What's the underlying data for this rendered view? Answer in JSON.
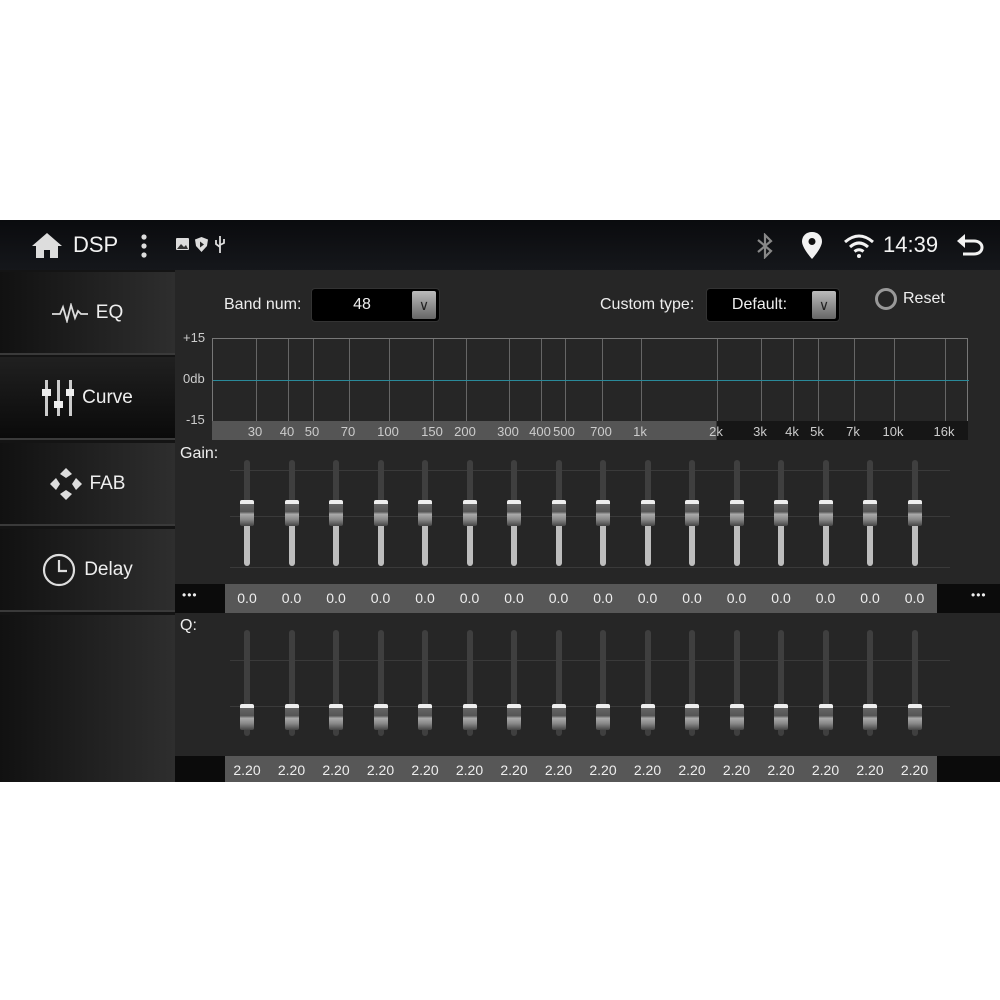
{
  "topbar": {
    "title": "DSP",
    "time": "14:39",
    "icons": [
      "home-icon",
      "more-vert-icon",
      "image-icon",
      "shield-play-icon",
      "usb-icon",
      "bluetooth-icon",
      "location-icon",
      "wifi-icon",
      "back-icon"
    ]
  },
  "sidebar": {
    "items": [
      {
        "label": "EQ",
        "icon": "waveform-icon",
        "active": false
      },
      {
        "label": "Curve",
        "icon": "sliders-icon",
        "active": true
      },
      {
        "label": "FAB",
        "icon": "fader-balance-icon",
        "active": false
      },
      {
        "label": "Delay",
        "icon": "clock-icon",
        "active": false
      }
    ]
  },
  "controls": {
    "band_label": "Band num:",
    "band_value": "48",
    "custom_label": "Custom type:",
    "custom_value": "Default:",
    "reset_label": "Reset"
  },
  "chart_data": {
    "type": "line",
    "y_ticks": [
      "+15",
      "0db",
      "-15"
    ],
    "ylim": [
      -15,
      15
    ],
    "x_ticks": [
      "30",
      "40",
      "50",
      "70",
      "100",
      "150",
      "200",
      "300",
      "400",
      "500",
      "700",
      "1k",
      "2k",
      "3k",
      "4k",
      "5k",
      "7k",
      "10k",
      "16k"
    ],
    "x_scale": "log",
    "series": [
      {
        "values": [
          0,
          0,
          0,
          0,
          0,
          0,
          0,
          0,
          0,
          0,
          0,
          0,
          0,
          0,
          0,
          0,
          0,
          0,
          0
        ]
      }
    ],
    "line_color": "#2a8a9a",
    "grid": true
  },
  "gain": {
    "label": "Gain:",
    "more": "•••",
    "values": [
      "0.0",
      "0.0",
      "0.0",
      "0.0",
      "0.0",
      "0.0",
      "0.0",
      "0.0",
      "0.0",
      "0.0",
      "0.0",
      "0.0",
      "0.0",
      "0.0",
      "0.0",
      "0.0"
    ]
  },
  "q": {
    "label": "Q:",
    "values": [
      "2.20",
      "2.20",
      "2.20",
      "2.20",
      "2.20",
      "2.20",
      "2.20",
      "2.20",
      "2.20",
      "2.20",
      "2.20",
      "2.20",
      "2.20",
      "2.20",
      "2.20",
      "2.20"
    ]
  }
}
